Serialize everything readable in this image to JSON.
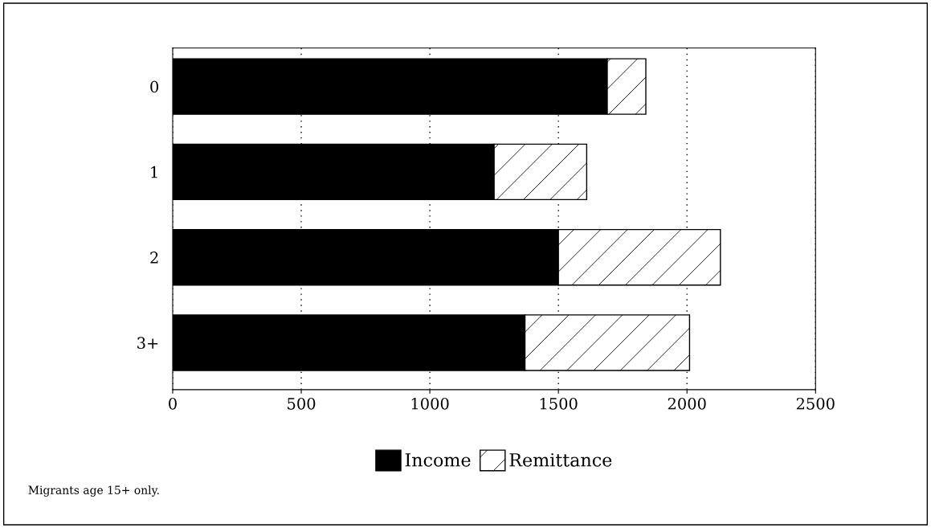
{
  "chart_data": {
    "type": "bar",
    "orientation": "horizontal",
    "stacked": true,
    "categories": [
      "0",
      "1",
      "2",
      "3+"
    ],
    "series": [
      {
        "name": "Income",
        "color": "#000000",
        "values": [
          1690,
          1250,
          1500,
          1370
        ]
      },
      {
        "name": "Remittance",
        "color": "#000000",
        "values": [
          150,
          360,
          630,
          640
        ]
      }
    ],
    "xlim": [
      0,
      2500
    ],
    "xticks": [
      0,
      500,
      1000,
      1500,
      2000,
      2500
    ],
    "grid": "x",
    "legend": "bottom",
    "annotations": [
      "Migrants age 15+ only."
    ]
  }
}
